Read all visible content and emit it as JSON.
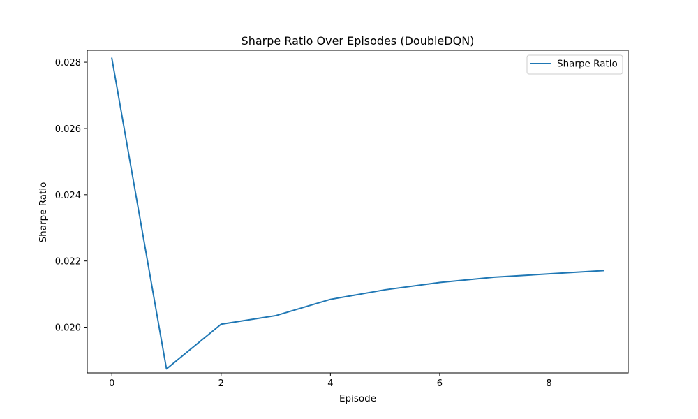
{
  "chart_data": {
    "type": "line",
    "title": "Sharpe Ratio Over Episodes (DoubleDQN)",
    "xlabel": "Episode",
    "ylabel": "Sharpe Ratio",
    "xlim": [
      -0.45,
      9.45
    ],
    "ylim": [
      0.01862,
      0.02836
    ],
    "xticks": [
      0,
      2,
      4,
      6,
      8
    ],
    "xtick_labels": [
      "0",
      "2",
      "4",
      "6",
      "8"
    ],
    "yticks": [
      0.02,
      0.022,
      0.024,
      0.026,
      0.028
    ],
    "ytick_labels": [
      "0.020",
      "0.022",
      "0.024",
      "0.026",
      "0.028"
    ],
    "grid": false,
    "legend": "top-right",
    "series": [
      {
        "name": "Sharpe Ratio",
        "color": "#1f77b4",
        "x": [
          0,
          1,
          2,
          3,
          4,
          5,
          6,
          7,
          8,
          9
        ],
        "values": [
          0.02812,
          0.01874,
          0.02009,
          0.02035,
          0.02084,
          0.02113,
          0.02135,
          0.02151,
          0.02161,
          0.02171
        ]
      }
    ]
  }
}
